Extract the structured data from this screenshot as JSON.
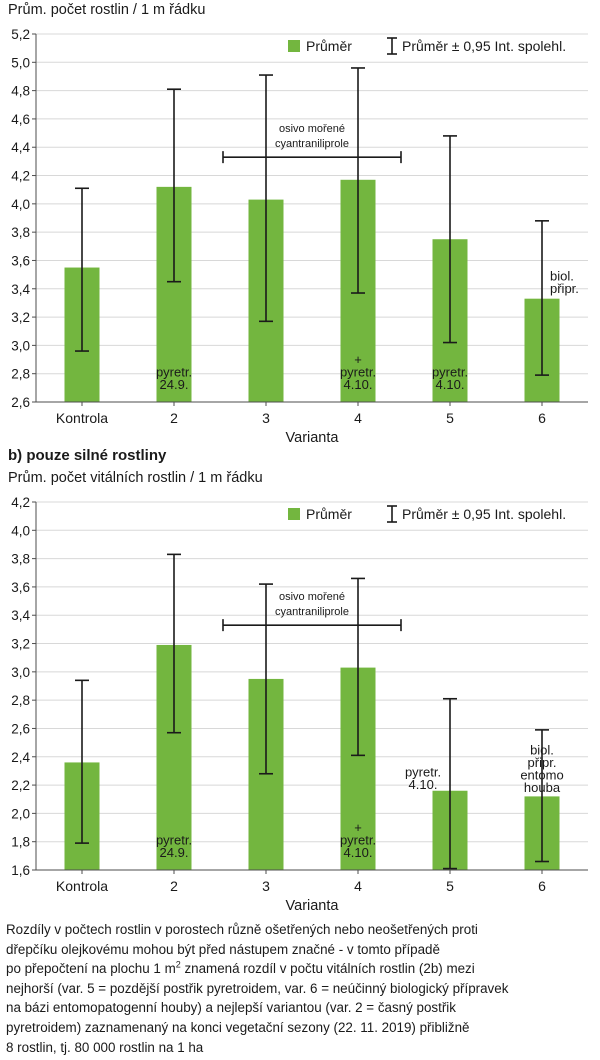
{
  "chart_data": [
    {
      "type": "bar",
      "ylabel": "Prům. počet rostlin / 1 m řádku",
      "xlabel": "Varianta",
      "categories": [
        "Kontrola",
        "2",
        "3",
        "4",
        "5",
        "6"
      ],
      "values": [
        3.55,
        4.12,
        4.03,
        4.17,
        3.75,
        3.33
      ],
      "ci_low": [
        2.96,
        3.45,
        3.17,
        3.37,
        3.02,
        2.79
      ],
      "ci_high": [
        4.11,
        4.81,
        4.91,
        4.96,
        4.48,
        3.88
      ],
      "ylim": [
        2.6,
        5.2
      ],
      "yticks": [
        "2,6",
        "2,8",
        "3,0",
        "3,2",
        "3,4",
        "3,6",
        "3,8",
        "4,0",
        "4,2",
        "4,4",
        "4,6",
        "4,8",
        "5,0",
        "5,2"
      ],
      "grid": true,
      "legend": {
        "position": "top-right",
        "mean": "Průměr",
        "ci": "Průměr ± 0,95 Int. spolehl."
      },
      "bracket": {
        "from": 3,
        "to": 4,
        "level": 4.33,
        "line1": "osivo mořené",
        "line2": "cyantraniliprole"
      },
      "annotations": [
        {
          "bar": 2,
          "lines": [
            "pyretr.",
            "24.9."
          ],
          "at": 2.72
        },
        {
          "bar": 4,
          "lines": [
            "+",
            "pyretr.",
            "4.10."
          ],
          "at": 2.72
        },
        {
          "bar": 5,
          "lines": [
            "pyretr.",
            "4.10."
          ],
          "at": 2.72
        },
        {
          "bar": 6,
          "lines": [
            "biol.",
            "připr."
          ],
          "at": 3.4,
          "right": true
        }
      ]
    },
    {
      "type": "bar",
      "title": "b) pouze silné rostliny",
      "ylabel": "Prům. počet vitálních rostlin / 1 m řádku",
      "xlabel": "Varianta",
      "categories": [
        "Kontrola",
        "2",
        "3",
        "4",
        "5",
        "6"
      ],
      "values": [
        2.36,
        3.19,
        2.95,
        3.03,
        2.16,
        2.12
      ],
      "ci_low": [
        1.79,
        2.57,
        2.28,
        2.41,
        1.61,
        1.66
      ],
      "ci_high": [
        2.94,
        3.83,
        3.62,
        3.66,
        2.81,
        2.59
      ],
      "ylim": [
        1.6,
        4.2
      ],
      "yticks": [
        "1,6",
        "1,8",
        "2,0",
        "2,2",
        "2,4",
        "2,6",
        "2,8",
        "3,0",
        "3,2",
        "3,4",
        "3,6",
        "3,8",
        "4,0",
        "4,2"
      ],
      "grid": true,
      "legend": {
        "position": "top-right",
        "mean": "Průměr",
        "ci": "Průměr ± 0,95 Int. spolehl."
      },
      "bracket": {
        "from": 3,
        "to": 4,
        "level": 3.33,
        "line1": "osivo mořené",
        "line2": "cyantraniliprole"
      },
      "annotations": [
        {
          "bar": 2,
          "lines": [
            "pyretr.",
            "24.9."
          ],
          "at": 1.72
        },
        {
          "bar": 4,
          "lines": [
            "+",
            "pyretr.",
            "4.10."
          ],
          "at": 1.72
        },
        {
          "bar": 5,
          "lines": [
            "pyretr.",
            "4.10."
          ],
          "at": 2.2,
          "left": true
        },
        {
          "bar": 6,
          "lines": [
            "biol.",
            "připr.",
            "entomo",
            "houba"
          ],
          "at": 2.15,
          "above": true
        }
      ]
    }
  ],
  "caption": {
    "line1": "Rozdíly v počtech rostlin v porostech různě ošetřených nebo neošetřených proti",
    "line2": "dřepčíku olejkovému mohou být před nástupem značné - v tomto případě",
    "line3a": "po přepočtení na plochu 1 m",
    "line3sup": "2",
    "line3b": " znamená rozdíl v počtu vitálních rostlin (2b) mezi",
    "line4": "nejhorší (var. 5 = pozdější postřik pyretroidem, var. 6 = neúčinný biologický přípravek",
    "line5": "na bázi entomopatogenní houby) a nejlepší variantou (var. 2 = časný postřik",
    "line6": "pyretroidem) zaznamenaný na konci vegetační sezony (22. 11. 2019) přibližně",
    "line7": "8 rostlin, tj. 80 000 rostlin na 1 ha"
  },
  "colors": {
    "bar": "#73b63f",
    "grid": "#d8d8d8",
    "axis": "#4d4d4d",
    "whisker": "#1a1a1a"
  }
}
